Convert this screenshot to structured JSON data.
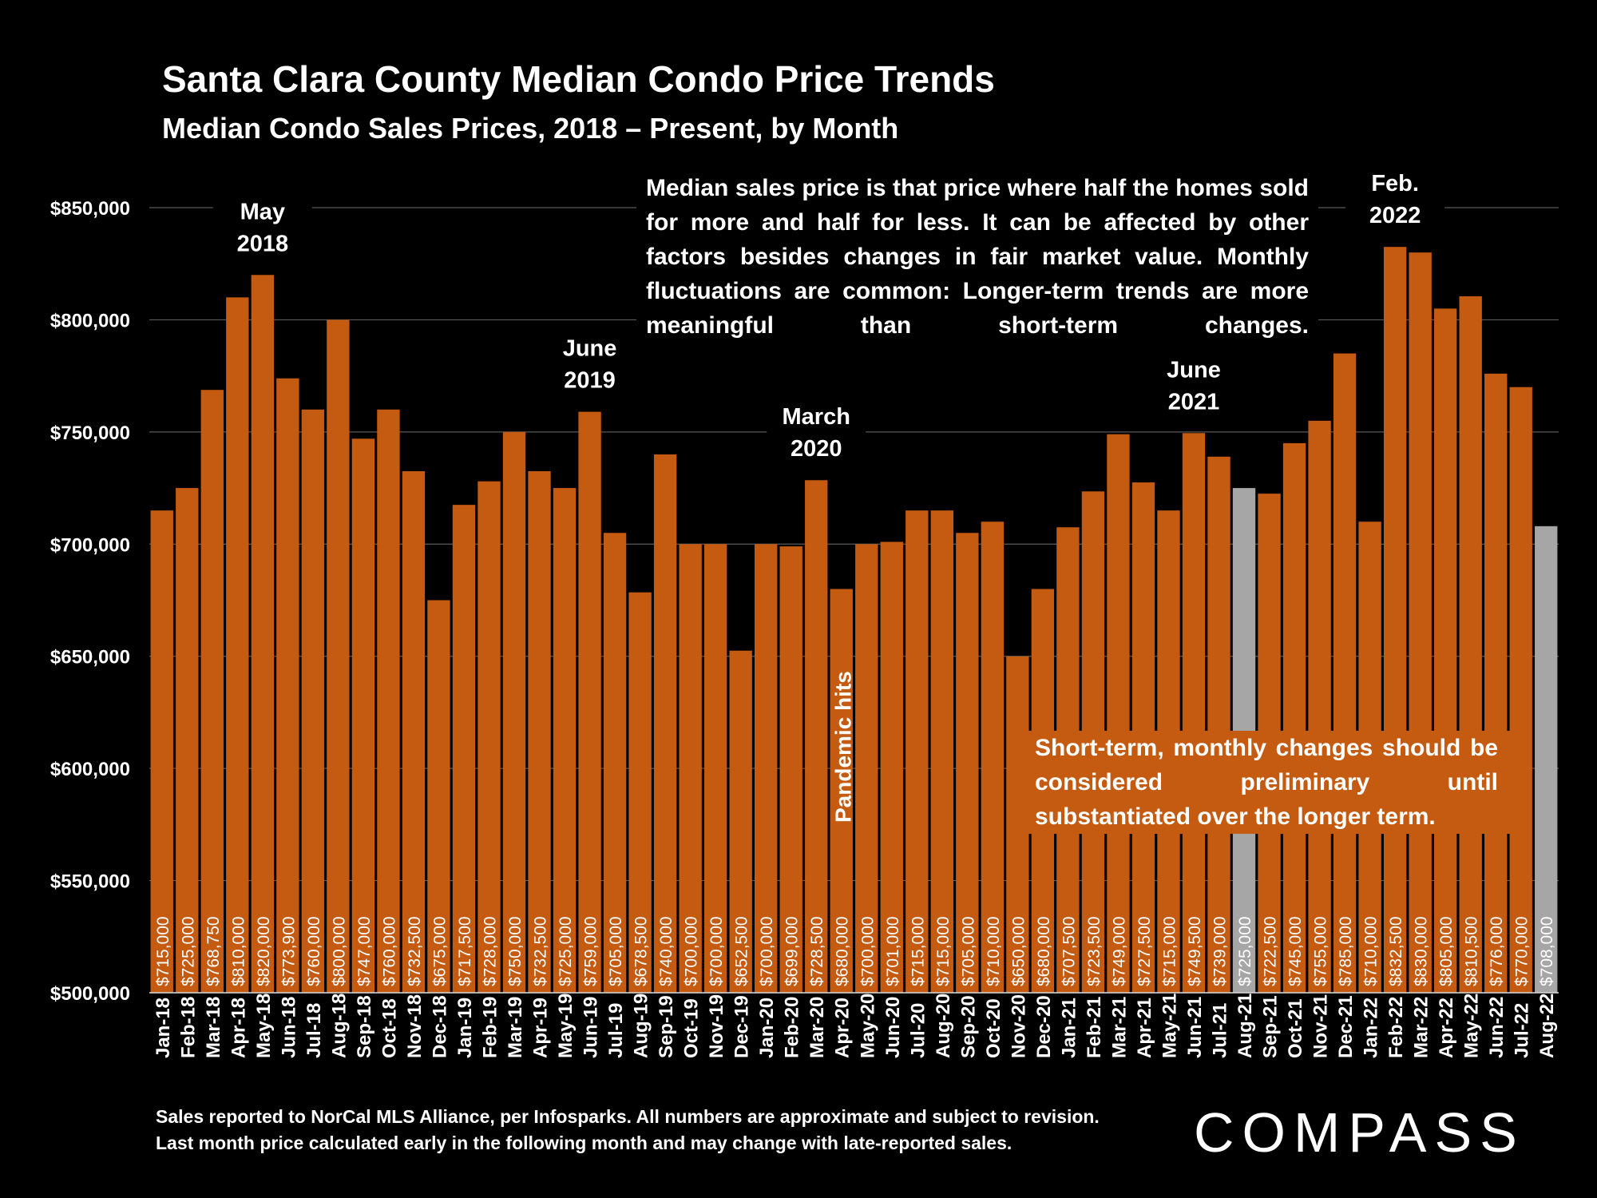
{
  "header": {
    "title": "Santa Clara County Median Condo Price Trends",
    "subtitle": "Median Condo Sales Prices, 2018 – Present, by Month"
  },
  "notes": {
    "definition": "Median sales price is that price where half the homes sold for more and half for less. It can be affected by other factors besides changes in fair market value. Monthly fluctuations are common: Longer-term trends are more meaningful than short-term changes.",
    "preliminary": "Short-term, monthly changes should be considered preliminary until substantiated over the longer term."
  },
  "footer": {
    "line1": "Sales reported to NorCal MLS Alliance, per Infosparks. All numbers are approximate and subject to revision.",
    "line2": "Last month price calculated early in the following month and may change with late-reported sales."
  },
  "logo": "COMPASS",
  "colors": {
    "bar": "#c55a11",
    "highlight": "#a6a6a6",
    "grid": "#595959",
    "background": "#000000"
  },
  "chart_data": {
    "type": "bar",
    "title": "Santa Clara County Median Condo Price Trends",
    "subtitle": "Median Condo Sales Prices, 2018 – Present, by Month",
    "ylim": [
      500000,
      850000
    ],
    "yticks": [
      500000,
      550000,
      600000,
      650000,
      700000,
      750000,
      800000,
      850000
    ],
    "ytick_labels": [
      "$500,000",
      "$550,000",
      "$600,000",
      "$650,000",
      "$700,000",
      "$750,000",
      "$800,000",
      "$850,000"
    ],
    "grid": true,
    "categories": [
      "Jan-18",
      "Feb-18",
      "Mar-18",
      "Apr-18",
      "May-18",
      "Jun-18",
      "Jul-18",
      "Aug-18",
      "Sep-18",
      "Oct-18",
      "Nov-18",
      "Dec-18",
      "Jan-19",
      "Feb-19",
      "Mar-19",
      "Apr-19",
      "May-19",
      "Jun-19",
      "Jul-19",
      "Aug-19",
      "Sep-19",
      "Oct-19",
      "Nov-19",
      "Dec-19",
      "Jan-20",
      "Feb-20",
      "Mar-20",
      "Apr-20",
      "May-20",
      "Jun-20",
      "Jul-20",
      "Aug-20",
      "Sep-20",
      "Oct-20",
      "Nov-20",
      "Dec-20",
      "Jan-21",
      "Feb-21",
      "Mar-21",
      "Apr-21",
      "May-21",
      "Jun-21",
      "Jul-21",
      "Aug-21",
      "Sep-21",
      "Oct-21",
      "Nov-21",
      "Dec-21",
      "Jan-22",
      "Feb-22",
      "Mar-22",
      "Apr-22",
      "May-22",
      "Jun-22",
      "Jul-22",
      "Aug-22"
    ],
    "values": [
      715000,
      725000,
      768750,
      810000,
      820000,
      773900,
      760000,
      800000,
      747000,
      760000,
      732500,
      675000,
      717500,
      728000,
      750000,
      732500,
      725000,
      759000,
      705000,
      678500,
      740000,
      700000,
      700000,
      652500,
      700000,
      699000,
      728500,
      680000,
      700000,
      701000,
      715000,
      715000,
      705000,
      710000,
      650000,
      680000,
      707500,
      723500,
      749000,
      727500,
      715000,
      749500,
      739000,
      725000,
      722500,
      745000,
      755000,
      785000,
      710000,
      832500,
      830000,
      805000,
      810500,
      776000,
      770000,
      708000
    ],
    "data_labels": [
      "$715,000",
      "$725,000",
      "$768,750",
      "$810,000",
      "$820,000",
      "$773,900",
      "$760,000",
      "$800,000",
      "$747,000",
      "$760,000",
      "$732,500",
      "$675,000",
      "$717,500",
      "$728,000",
      "$750,000",
      "$732,500",
      "$725,000",
      "$759,000",
      "$705,000",
      "$678,500",
      "$740,000",
      "$700,000",
      "$700,000",
      "$652,500",
      "$700,000",
      "$699,000",
      "$728,500",
      "$680,000",
      "$700,000",
      "$701,000",
      "$715,000",
      "$715,000",
      "$705,000",
      "$710,000",
      "$650,000",
      "$680,000",
      "$707,500",
      "$723,500",
      "$749,000",
      "$727,500",
      "$715,000",
      "$749,500",
      "$739,000",
      "$725,000",
      "$722,500",
      "$745,000",
      "$755,000",
      "$785,000",
      "$710,000",
      "$832,500",
      "$830,000",
      "$805,000",
      "$810,500",
      "$776,000",
      "$770,000",
      "$708,000"
    ],
    "highlighted": [
      "Aug-21",
      "Aug-22"
    ],
    "annotations": [
      {
        "line1": "May",
        "line2": "2018",
        "category": "May-18"
      },
      {
        "line1": "June",
        "line2": "2019",
        "category": "Jun-19"
      },
      {
        "line1": "March",
        "line2": "2020",
        "category": "Mar-20"
      },
      {
        "line1": "June",
        "line2": "2021",
        "category": "Jun-21"
      },
      {
        "line1": "Feb.",
        "line2": "2022",
        "category": "Feb-22"
      }
    ],
    "vertical_annotation": {
      "text": "Pandemic hits",
      "category": "Apr-20"
    }
  }
}
